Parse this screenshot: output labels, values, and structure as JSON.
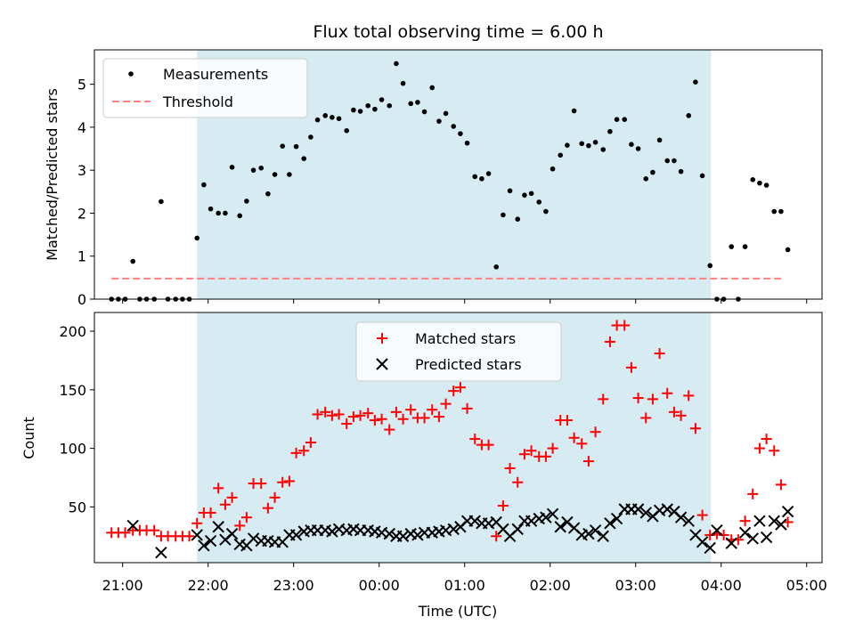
{
  "title": "Flux total observing time = 6.00 h",
  "colors": {
    "shade": "#add8e6",
    "threshold": "#ff7f7f",
    "matched": "#ff0000",
    "predicted": "#000000",
    "points": "#000000"
  },
  "chart_data": [
    {
      "type": "scatter",
      "ylabel": "Matched/Predicted stars",
      "ylim": [
        0,
        5.8
      ],
      "yticks": [
        0,
        1,
        2,
        3,
        4,
        5
      ],
      "xlim_hours": [
        20.67,
        29.18
      ],
      "shaded_x_hours": [
        21.87,
        27.88
      ],
      "legend": [
        "Measurements",
        "Threshold"
      ],
      "legend_position": "upper-left",
      "threshold": {
        "value": 0.48,
        "x_hours": [
          20.87,
          28.72
        ]
      },
      "series": [
        {
          "name": "Measurements",
          "x_hours": [
            20.87,
            20.95,
            21.03,
            21.12,
            21.2,
            21.28,
            21.37,
            21.45,
            21.53,
            21.62,
            21.7,
            21.78,
            21.87,
            21.95,
            22.03,
            22.12,
            22.2,
            22.28,
            22.37,
            22.45,
            22.53,
            22.62,
            22.7,
            22.78,
            22.87,
            22.95,
            23.03,
            23.12,
            23.2,
            23.28,
            23.37,
            23.45,
            23.53,
            23.62,
            23.7,
            23.78,
            23.87,
            23.95,
            24.03,
            24.12,
            24.2,
            24.28,
            24.37,
            24.45,
            24.53,
            24.62,
            24.7,
            24.78,
            24.87,
            24.95,
            25.03,
            25.12,
            25.2,
            25.28,
            25.37,
            25.45,
            25.53,
            25.62,
            25.7,
            25.78,
            25.87,
            25.95,
            26.03,
            26.12,
            26.2,
            26.28,
            26.37,
            26.45,
            26.53,
            26.62,
            26.7,
            26.78,
            26.87,
            26.95,
            27.03,
            27.12,
            27.2,
            27.28,
            27.37,
            27.45,
            27.53,
            27.62,
            27.7,
            27.78,
            27.87,
            27.95,
            28.03,
            28.12,
            28.2,
            28.28,
            28.37,
            28.45,
            28.53,
            28.62,
            28.7,
            28.78
          ],
          "values": [
            0,
            0,
            0,
            0.88,
            0,
            0,
            0,
            2.27,
            0,
            0,
            0,
            0,
            1.42,
            2.66,
            2.1,
            2.0,
            2.0,
            3.07,
            1.94,
            2.28,
            3.0,
            3.05,
            2.45,
            2.9,
            3.56,
            2.9,
            3.55,
            3.27,
            3.77,
            4.17,
            4.27,
            4.23,
            4.2,
            3.92,
            4.4,
            4.37,
            4.5,
            4.42,
            4.64,
            4.5,
            5.48,
            5.02,
            4.55,
            4.58,
            4.36,
            4.92,
            4.14,
            4.32,
            4.02,
            3.85,
            3.63,
            2.85,
            2.8,
            2.92,
            0.75,
            1.96,
            2.52,
            1.86,
            2.42,
            2.46,
            2.26,
            2.04,
            3.03,
            3.35,
            3.58,
            4.38,
            3.62,
            3.57,
            3.65,
            3.48,
            3.9,
            4.18,
            4.18,
            3.6,
            3.5,
            2.8,
            2.95,
            3.7,
            3.22,
            3.22,
            2.97,
            4.27,
            5.05,
            2.87,
            0.78,
            0,
            0,
            1.22,
            0,
            1.22,
            2.78,
            2.7,
            2.65,
            2.04,
            2.04,
            1.15
          ]
        }
      ]
    },
    {
      "type": "scatter",
      "ylabel": "Count",
      "xlabel": "Time (UTC)",
      "ylim": [
        2.4,
        216
      ],
      "yticks": [
        50,
        100,
        150,
        200
      ],
      "xlim_hours": [
        20.67,
        29.18
      ],
      "shaded_x_hours": [
        21.87,
        27.88
      ],
      "legend": [
        "Matched stars",
        "Predicted stars"
      ],
      "legend_position": "upper-center",
      "x_ticks": [
        "21:00",
        "22:00",
        "23:00",
        "00:00",
        "01:00",
        "02:00",
        "03:00",
        "04:00",
        "05:00"
      ],
      "x_tick_hours": [
        21,
        22,
        23,
        24,
        25,
        26,
        27,
        28,
        29
      ],
      "series": [
        {
          "name": "Matched stars",
          "x_hours": [
            20.87,
            20.95,
            21.03,
            21.12,
            21.2,
            21.28,
            21.37,
            21.45,
            21.53,
            21.62,
            21.7,
            21.78,
            21.87,
            21.95,
            22.03,
            22.12,
            22.2,
            22.28,
            22.37,
            22.45,
            22.53,
            22.62,
            22.7,
            22.78,
            22.87,
            22.95,
            23.03,
            23.12,
            23.2,
            23.28,
            23.37,
            23.45,
            23.53,
            23.62,
            23.7,
            23.78,
            23.87,
            23.95,
            24.03,
            24.12,
            24.2,
            24.28,
            24.37,
            24.45,
            24.53,
            24.62,
            24.7,
            24.78,
            24.87,
            24.95,
            25.03,
            25.12,
            25.2,
            25.28,
            25.37,
            25.45,
            25.53,
            25.62,
            25.7,
            25.78,
            25.87,
            25.95,
            26.03,
            26.12,
            26.2,
            26.28,
            26.37,
            26.45,
            26.53,
            26.62,
            26.7,
            26.78,
            26.87,
            26.95,
            27.03,
            27.12,
            27.2,
            27.28,
            27.37,
            27.45,
            27.53,
            27.62,
            27.7,
            27.78,
            27.87,
            27.95,
            28.03,
            28.12,
            28.2,
            28.28,
            28.37,
            28.45,
            28.53,
            28.62,
            28.7,
            28.78
          ],
          "values": [
            28,
            28,
            28,
            30,
            30,
            30,
            30,
            25,
            25,
            25,
            25,
            25,
            36,
            45,
            45,
            66,
            52,
            58,
            34,
            41,
            70,
            70,
            49,
            58,
            71,
            72,
            96,
            98,
            105,
            129,
            131,
            128,
            129,
            121,
            127,
            128,
            130,
            124,
            125,
            116,
            131,
            125,
            133,
            126,
            126,
            133,
            127,
            138,
            149,
            152,
            134,
            108,
            103,
            103,
            25,
            51,
            83,
            71,
            95,
            98,
            93,
            93,
            100,
            124,
            124,
            109,
            104,
            89,
            114,
            142,
            191,
            205,
            205,
            169,
            143,
            126,
            142,
            181,
            147,
            131,
            128,
            145,
            117,
            43,
            26,
            27,
            26,
            22,
            22,
            38,
            61,
            100,
            108,
            98,
            69,
            37
          ]
        },
        {
          "name": "Predicted stars",
          "x_hours": [
            21.12,
            21.45,
            21.87,
            21.95,
            22.03,
            22.12,
            22.2,
            22.28,
            22.37,
            22.45,
            22.53,
            22.62,
            22.7,
            22.78,
            22.87,
            22.95,
            23.03,
            23.12,
            23.2,
            23.28,
            23.37,
            23.45,
            23.53,
            23.62,
            23.7,
            23.78,
            23.87,
            23.95,
            24.03,
            24.12,
            24.2,
            24.28,
            24.37,
            24.45,
            24.53,
            24.62,
            24.7,
            24.78,
            24.87,
            24.95,
            25.03,
            25.12,
            25.2,
            25.28,
            25.37,
            25.45,
            25.53,
            25.62,
            25.7,
            25.78,
            25.87,
            25.95,
            26.03,
            26.12,
            26.2,
            26.28,
            26.37,
            26.45,
            26.53,
            26.62,
            26.7,
            26.78,
            26.87,
            26.95,
            27.03,
            27.12,
            27.2,
            27.28,
            27.37,
            27.45,
            27.53,
            27.62,
            27.7,
            27.78,
            27.87,
            27.95,
            28.12,
            28.28,
            28.37,
            28.45,
            28.53,
            28.62,
            28.7,
            28.78
          ],
          "values": [
            34,
            11,
            26,
            17,
            21,
            33,
            22,
            27,
            18,
            17,
            23,
            21,
            21,
            20,
            20,
            26,
            26,
            29,
            30,
            30,
            30,
            29,
            31,
            30,
            31,
            30,
            30,
            29,
            28,
            27,
            25,
            25,
            27,
            26,
            28,
            28,
            29,
            30,
            31,
            33,
            38,
            38,
            36,
            36,
            37,
            31,
            25,
            31,
            38,
            38,
            40,
            41,
            44,
            33,
            37,
            32,
            26,
            27,
            30,
            25,
            36,
            40,
            48,
            48,
            48,
            45,
            42,
            47,
            48,
            46,
            41,
            38,
            26,
            20,
            15,
            30,
            19,
            28,
            23,
            38,
            24,
            38,
            35,
            46
          ]
        }
      ]
    }
  ]
}
